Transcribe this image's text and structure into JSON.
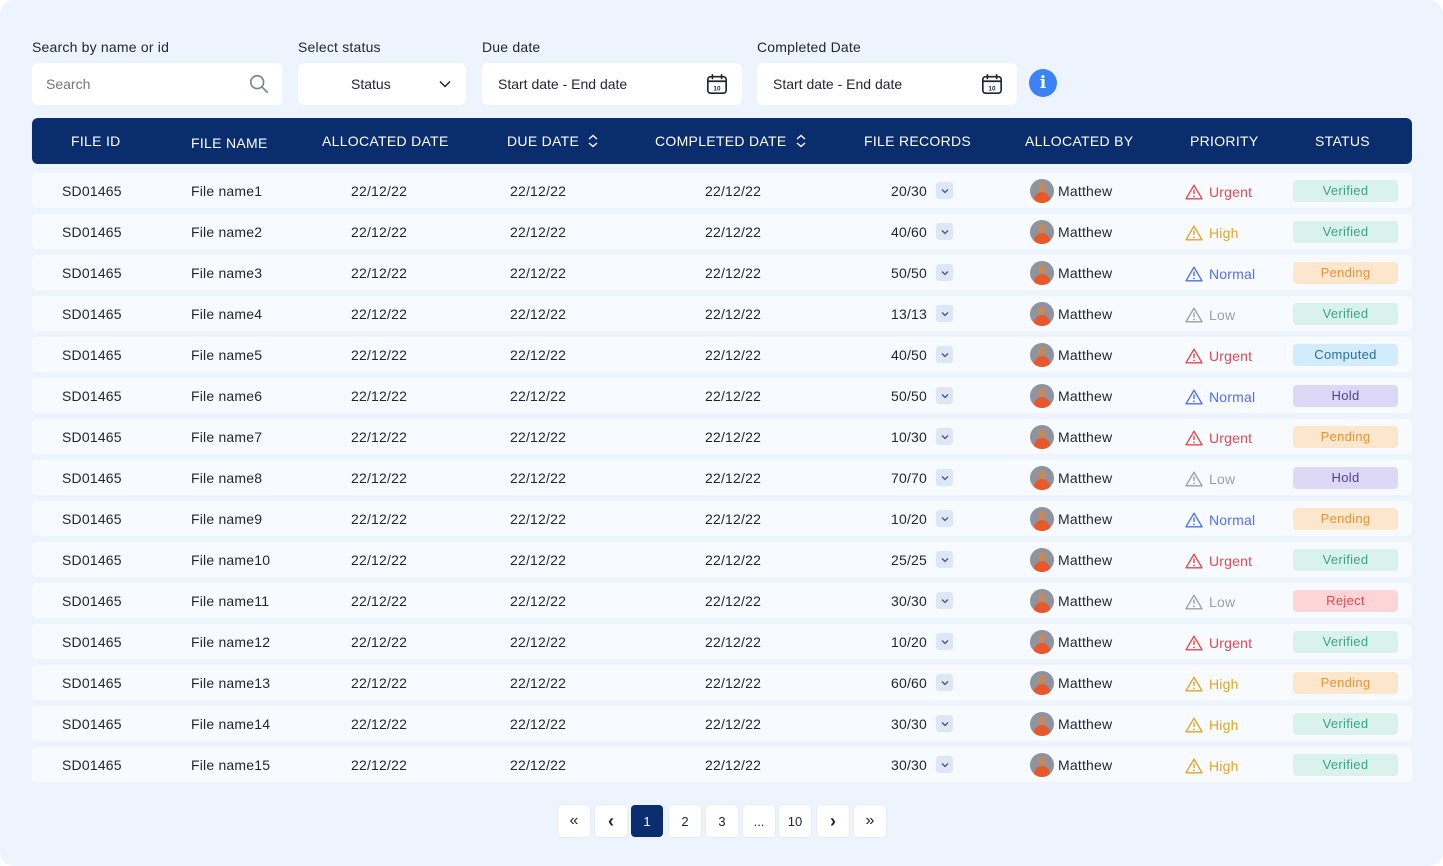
{
  "filters": {
    "search_label": "Search by name or id",
    "search_placeholder": "Search",
    "status_label": "Select status",
    "status_value": "Status",
    "due_label": "Due date",
    "due_value": "Start date - End date",
    "completed_label": "Completed Date",
    "completed_value": "Start date - End date",
    "calendar_day": "10",
    "info_glyph": "i"
  },
  "table": {
    "headers": [
      "FILE ID",
      "FILE NAME",
      "ALLOCATED DATE",
      "DUE DATE",
      "COMPLETED DATE",
      "FILE RECORDS",
      "ALLOCATED BY",
      "PRIORITY",
      "STATUS"
    ],
    "rows": [
      {
        "id": "SD01465",
        "name": "File name1",
        "allocated": "22/12/22",
        "due": "22/12/22",
        "completed": "22/12/22",
        "records": "20/30",
        "by": "Matthew",
        "priority": "Urgent",
        "status": "Verified"
      },
      {
        "id": "SD01465",
        "name": "File name2",
        "allocated": "22/12/22",
        "due": "22/12/22",
        "completed": "22/12/22",
        "records": "40/60",
        "by": "Matthew",
        "priority": "High",
        "status": "Verified"
      },
      {
        "id": "SD01465",
        "name": "File name3",
        "allocated": "22/12/22",
        "due": "22/12/22",
        "completed": "22/12/22",
        "records": "50/50",
        "by": "Matthew",
        "priority": "Normal",
        "status": "Pending"
      },
      {
        "id": "SD01465",
        "name": "File name4",
        "allocated": "22/12/22",
        "due": "22/12/22",
        "completed": "22/12/22",
        "records": "13/13",
        "by": "Matthew",
        "priority": "Low",
        "status": "Verified"
      },
      {
        "id": "SD01465",
        "name": "File name5",
        "allocated": "22/12/22",
        "due": "22/12/22",
        "completed": "22/12/22",
        "records": "40/50",
        "by": "Matthew",
        "priority": "Urgent",
        "status": "Computed"
      },
      {
        "id": "SD01465",
        "name": "File name6",
        "allocated": "22/12/22",
        "due": "22/12/22",
        "completed": "22/12/22",
        "records": "50/50",
        "by": "Matthew",
        "priority": "Normal",
        "status": "Hold"
      },
      {
        "id": "SD01465",
        "name": "File name7",
        "allocated": "22/12/22",
        "due": "22/12/22",
        "completed": "22/12/22",
        "records": "10/30",
        "by": "Matthew",
        "priority": "Urgent",
        "status": "Pending"
      },
      {
        "id": "SD01465",
        "name": "File name8",
        "allocated": "22/12/22",
        "due": "22/12/22",
        "completed": "22/12/22",
        "records": "70/70",
        "by": "Matthew",
        "priority": "Low",
        "status": "Hold"
      },
      {
        "id": "SD01465",
        "name": "File name9",
        "allocated": "22/12/22",
        "due": "22/12/22",
        "completed": "22/12/22",
        "records": "10/20",
        "by": "Matthew",
        "priority": "Normal",
        "status": "Pending"
      },
      {
        "id": "SD01465",
        "name": "File name10",
        "allocated": "22/12/22",
        "due": "22/12/22",
        "completed": "22/12/22",
        "records": "25/25",
        "by": "Matthew",
        "priority": "Urgent",
        "status": "Verified"
      },
      {
        "id": "SD01465",
        "name": "File name11",
        "allocated": "22/12/22",
        "due": "22/12/22",
        "completed": "22/12/22",
        "records": "30/30",
        "by": "Matthew",
        "priority": "Low",
        "status": "Reject"
      },
      {
        "id": "SD01465",
        "name": "File name12",
        "allocated": "22/12/22",
        "due": "22/12/22",
        "completed": "22/12/22",
        "records": "10/20",
        "by": "Matthew",
        "priority": "Urgent",
        "status": "Verified"
      },
      {
        "id": "SD01465",
        "name": "File name13",
        "allocated": "22/12/22",
        "due": "22/12/22",
        "completed": "22/12/22",
        "records": "60/60",
        "by": "Matthew",
        "priority": "High",
        "status": "Pending"
      },
      {
        "id": "SD01465",
        "name": "File name14",
        "allocated": "22/12/22",
        "due": "22/12/22",
        "completed": "22/12/22",
        "records": "30/30",
        "by": "Matthew",
        "priority": "High",
        "status": "Verified"
      },
      {
        "id": "SD01465",
        "name": "File name15",
        "allocated": "22/12/22",
        "due": "22/12/22",
        "completed": "22/12/22",
        "records": "30/30",
        "by": "Matthew",
        "priority": "High",
        "status": "Verified"
      }
    ]
  },
  "priority_colors": {
    "Urgent": "#e5484d",
    "High": "#e0a526",
    "Normal": "#4f6ef7",
    "Low": "#9aa0aa"
  },
  "status_styles": {
    "Verified": {
      "bg": "#d9f2ec",
      "fg": "#3aa38a"
    },
    "Pending": {
      "bg": "#fde7cc",
      "fg": "#e8913a"
    },
    "Computed": {
      "bg": "#d3ecfb",
      "fg": "#2a6f97"
    },
    "Hold": {
      "bg": "#ddd8f5",
      "fg": "#4b3f9e"
    },
    "Reject": {
      "bg": "#fdd5d7",
      "fg": "#e5484d"
    }
  },
  "colors": {
    "header_bg": "#0a2d6e",
    "page_bg": "#eef4fd",
    "row_bg": "#f7faff",
    "info_blue": "#3b82f6"
  },
  "icons": {
    "search": "search-icon",
    "status_dropdown": "chevron-down-icon",
    "calendar": "calendar-icon",
    "info": "info-icon",
    "sort": "sort-icon",
    "records_toggle": "chevron-down-icon",
    "priority": "warning-triangle-icon",
    "first_page": "double-chevron-left-icon",
    "prev_page": "chevron-left-icon",
    "next_page": "chevron-right-icon",
    "last_page": "double-chevron-right-icon"
  },
  "pagination": {
    "first": "«",
    "prev": "‹",
    "pages": [
      "1",
      "2",
      "3",
      "...",
      "10"
    ],
    "active": "1",
    "next": "›",
    "last": "»"
  }
}
